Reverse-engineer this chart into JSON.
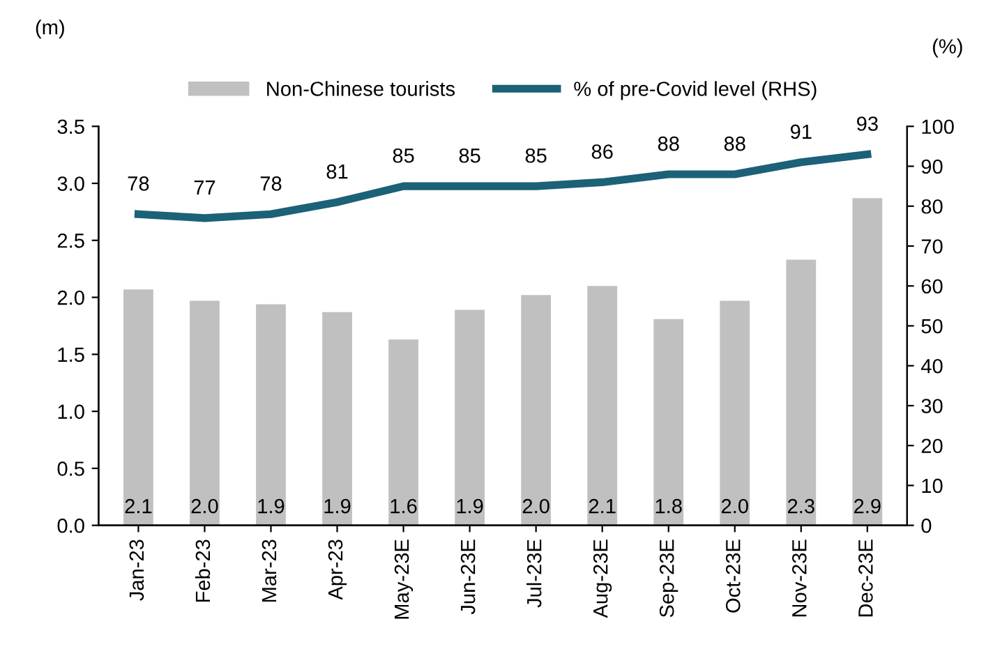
{
  "chart_data": {
    "type": "bar",
    "categories": [
      "Jan-23",
      "Feb-23",
      "Mar-23",
      "Apr-23",
      "May-23E",
      "Jun-23E",
      "Jul-23E",
      "Aug-23E",
      "Sep-23E",
      "Oct-23E",
      "Nov-23E",
      "Dec-23E"
    ],
    "series": [
      {
        "name": "Non-Chinese tourists",
        "color": "#c0c0c0",
        "values": [
          2.07,
          1.97,
          1.94,
          1.87,
          1.63,
          1.89,
          2.02,
          2.1,
          1.81,
          1.97,
          2.33,
          2.87
        ],
        "value_labels": [
          "2.1",
          "2.0",
          "1.9",
          "1.9",
          "1.6",
          "1.9",
          "2.0",
          "2.1",
          "1.8",
          "2.0",
          "2.3",
          "2.9"
        ]
      },
      {
        "name": "% of pre-Covid level (RHS)",
        "type": "line",
        "axis": "y2",
        "color": "#1b6178",
        "values": [
          78,
          77,
          78,
          81,
          85,
          85,
          85,
          86,
          88,
          88,
          91,
          93
        ],
        "value_labels": [
          "78",
          "77",
          "78",
          "81",
          "85",
          "85",
          "85",
          "86",
          "88",
          "88",
          "91",
          "93"
        ]
      }
    ],
    "ylabel": "(m)",
    "y2label": "(%)",
    "ylim": [
      0,
      3.5
    ],
    "yticks": [
      {
        "value": 0,
        "label": "0.0"
      },
      {
        "value": 0.5,
        "label": "0.5"
      },
      {
        "value": 1,
        "label": "1.0"
      },
      {
        "value": 1.5,
        "label": "1.5"
      },
      {
        "value": 2,
        "label": "2.0"
      },
      {
        "value": 2.5,
        "label": "2.5"
      },
      {
        "value": 3,
        "label": "3.0"
      },
      {
        "value": 3.5,
        "label": "3.5"
      }
    ],
    "y2lim": [
      0,
      100
    ],
    "y2ticks": [
      0,
      10,
      20,
      30,
      40,
      50,
      60,
      70,
      80,
      90,
      100
    ],
    "grid": false,
    "legend": "top",
    "marker": "none",
    "line_style": "solid"
  }
}
